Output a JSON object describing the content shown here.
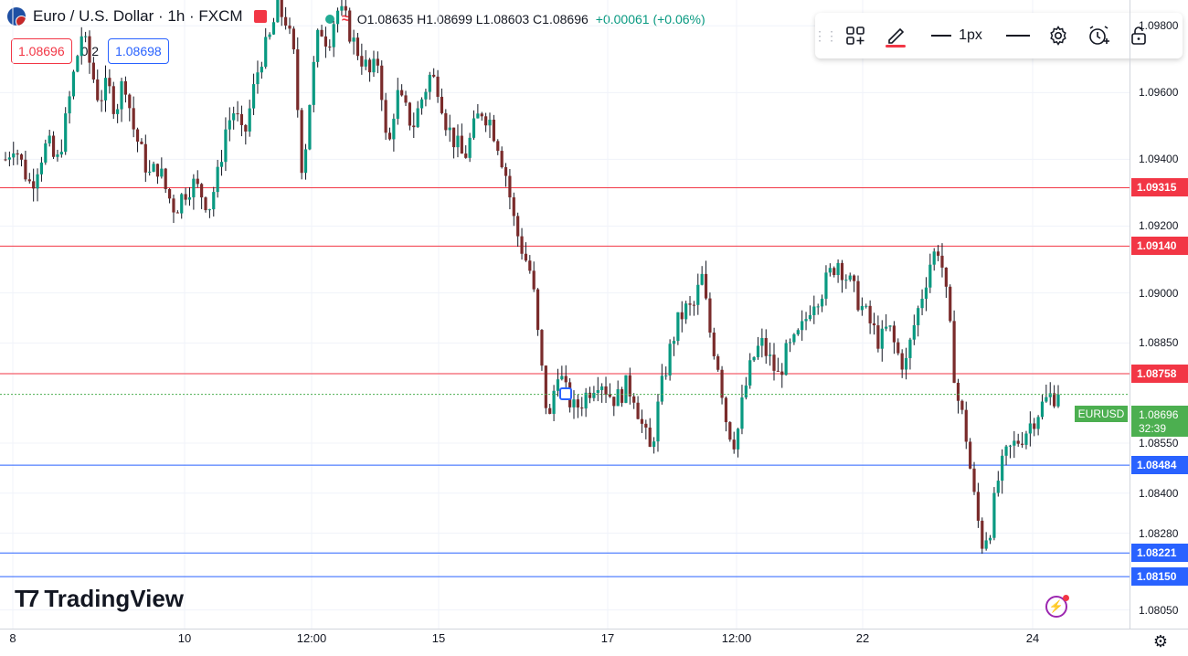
{
  "header": {
    "symbol_title": "Euro / U.S. Dollar · 1h · FXCM",
    "ohlc_text": "O1.08635  H1.08699  L1.08603  C1.08696",
    "change_text": "+0.00061 (+0.06%)",
    "sell_price": "1.08696",
    "spread": "0.2",
    "buy_price": "1.08698"
  },
  "toolbar": {
    "line_width_label": "1px"
  },
  "logo": {
    "text": "TradingView"
  },
  "colors": {
    "up": "#089981",
    "down": "#f23645",
    "candle_body": "#7a2b2b",
    "resistance": "#f23645",
    "support": "#2962ff",
    "current": "#4caf50",
    "grid": "#f0f3fa"
  },
  "chart_data": {
    "type": "candlestick",
    "title": "Euro / U.S. Dollar · 1h · FXCM",
    "series_name": "EURUSD",
    "x_tick_labels": [
      "8",
      "10",
      "12:00",
      "15",
      "17",
      "12:00",
      "22",
      "24"
    ],
    "y_tick_labels": [
      "1.09800",
      "1.09600",
      "1.09400",
      "1.09200",
      "1.09000",
      "1.08850",
      "1.08550",
      "1.08400",
      "1.08280",
      "1.08050"
    ],
    "ylim": [
      1.0804,
      1.0985
    ],
    "grid": true,
    "last_price": "1.08696",
    "countdown": "32:39",
    "levels": [
      {
        "value": 1.09315,
        "label": "1.09315",
        "kind": "resistance"
      },
      {
        "value": 1.0914,
        "label": "1.09140",
        "kind": "resistance"
      },
      {
        "value": 1.08758,
        "label": "1.08758",
        "kind": "resistance"
      },
      {
        "value": 1.08484,
        "label": "1.08484",
        "kind": "support"
      },
      {
        "value": 1.08221,
        "label": "1.08221",
        "kind": "support"
      },
      {
        "value": 1.0815,
        "label": "1.08150",
        "kind": "support"
      }
    ],
    "path_close": [
      1.094,
      1.0945,
      1.0938,
      1.0932,
      1.094,
      1.0945,
      1.0938,
      1.095,
      1.0965,
      1.0978,
      1.0968,
      1.0958,
      1.0962,
      1.0955,
      1.0965,
      1.095,
      1.0942,
      1.0935,
      1.0938,
      1.093,
      1.0925,
      1.093,
      1.0933,
      1.093,
      1.0926,
      1.0935,
      1.095,
      1.0955,
      1.0945,
      1.0958,
      1.097,
      1.0975,
      1.0985,
      1.0982,
      1.097,
      1.0935,
      1.0962,
      1.098,
      1.0975,
      1.0985,
      1.0982,
      1.0975,
      1.097,
      1.0965,
      1.097,
      1.094,
      1.096,
      1.0955,
      1.095,
      1.0958,
      1.0965,
      1.0962,
      1.095,
      1.0945,
      1.094,
      1.0948,
      1.0955,
      1.0952,
      1.0945,
      1.0935,
      1.092,
      1.0912,
      1.0905,
      1.088,
      1.086,
      1.0878,
      1.087,
      1.0865,
      1.0868,
      1.0872,
      1.0875,
      1.087,
      1.0868,
      1.0872,
      1.087,
      1.086,
      1.0852,
      1.0868,
      1.088,
      1.089,
      1.0895,
      1.0895,
      1.0905,
      1.0888,
      1.0878,
      1.086,
      1.0855,
      1.087,
      1.088,
      1.0885,
      1.088,
      1.0875,
      1.0882,
      1.0885,
      1.089,
      1.0898,
      1.09,
      1.0905,
      1.091,
      1.0905,
      1.09,
      1.0895,
      1.089,
      1.0885,
      1.089,
      1.0882,
      1.0878,
      1.089,
      1.09,
      1.091,
      1.0914,
      1.0895,
      1.087,
      1.086,
      1.084,
      1.0825,
      1.083,
      1.0845,
      1.0852,
      1.0855,
      1.0858,
      1.0862,
      1.0866,
      1.0869,
      1.08696
    ],
    "approx_extremes": {
      "high": 1.0985,
      "low": 1.0822
    }
  }
}
